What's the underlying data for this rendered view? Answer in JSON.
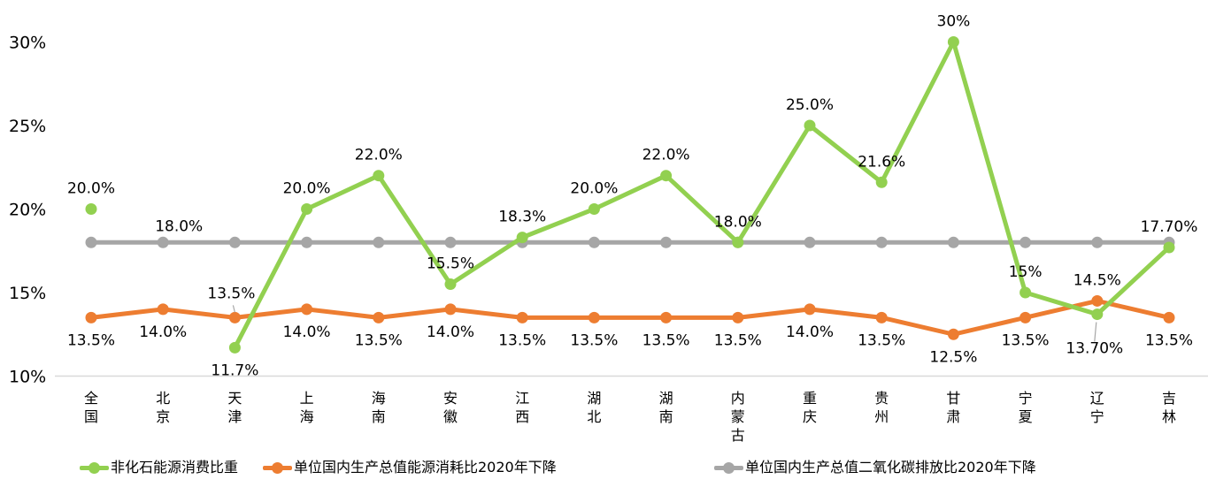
{
  "chart_data": {
    "type": "line",
    "title": "",
    "xlabel": "",
    "ylabel": "",
    "ylim": [
      10,
      30
    ],
    "grid": false,
    "legend_position": "bottom",
    "categories": [
      "全国",
      "北京",
      "天津",
      "上海",
      "海南",
      "安徽",
      "江西",
      "湖北",
      "湖南",
      "内蒙古",
      "重庆",
      "贵州",
      "甘肃",
      "宁夏",
      "辽宁",
      "吉林"
    ],
    "y_axis": {
      "ticks": [
        "30%",
        "25%",
        "20%",
        "15%",
        "10%"
      ],
      "tick_values": [
        30,
        25,
        20,
        15,
        10
      ],
      "unit": "%"
    },
    "series": [
      {
        "name": "非化石能源消费比重",
        "color": "#92d050",
        "values": [
          20.0,
          null,
          11.7,
          20.0,
          22.0,
          15.5,
          18.3,
          20.0,
          22.0,
          18.0,
          25.0,
          21.6,
          30,
          15,
          13.7,
          17.7
        ],
        "labels": [
          "20.0%",
          null,
          "11.7%",
          "20.0%",
          "22.0%",
          "15.5%",
          "18.3%",
          "20.0%",
          "22.0%",
          "18.0%",
          "25.0%",
          "21.6%",
          "30%",
          "15%",
          "13.70%",
          "17.70%"
        ],
        "label_pos": [
          "above",
          null,
          "below",
          "above",
          "above",
          "above",
          "above",
          "above",
          "above",
          "above",
          "above",
          "above",
          "above",
          "above",
          "below-leader",
          "above"
        ]
      },
      {
        "name": "单位国内生产总值能源消耗比2020年下降",
        "color": "#ed7d31",
        "values": [
          13.5,
          14.0,
          13.5,
          14.0,
          13.5,
          14.0,
          13.5,
          13.5,
          13.5,
          13.5,
          14.0,
          13.5,
          12.5,
          13.5,
          14.5,
          13.5
        ],
        "labels": [
          "13.5%",
          "14.0%",
          "13.5%",
          "14.0%",
          "13.5%",
          "14.0%",
          "13.5%",
          "13.5%",
          "13.5%",
          "13.5%",
          "14.0%",
          "13.5%",
          "12.5%",
          "13.5%",
          "14.5%",
          "13.5%"
        ],
        "label_pos": [
          "below",
          "below",
          "above-leader",
          "below",
          "below",
          "below",
          "below",
          "below",
          "below",
          "below",
          "below",
          "below",
          "below",
          "below",
          "above",
          "below"
        ]
      },
      {
        "name": "单位国内生产总值二氧化碳排放比2020年下降",
        "color": "#a6a6a6",
        "values": [
          18,
          18,
          18,
          18,
          18,
          18,
          18,
          18,
          18,
          18,
          18,
          18,
          18,
          18,
          18,
          18
        ],
        "labels": [
          null,
          "18.0%",
          null,
          null,
          null,
          null,
          null,
          null,
          null,
          null,
          null,
          null,
          null,
          null,
          null,
          null
        ],
        "label_pos": [
          null,
          "above-right",
          null,
          null,
          null,
          null,
          null,
          null,
          null,
          null,
          null,
          null,
          null,
          null,
          null,
          null
        ]
      }
    ],
    "style": {
      "axis_line_color": "#d9d9d9",
      "leader_line_color": "#a6a6a6",
      "label_text_color": "#000000"
    }
  }
}
